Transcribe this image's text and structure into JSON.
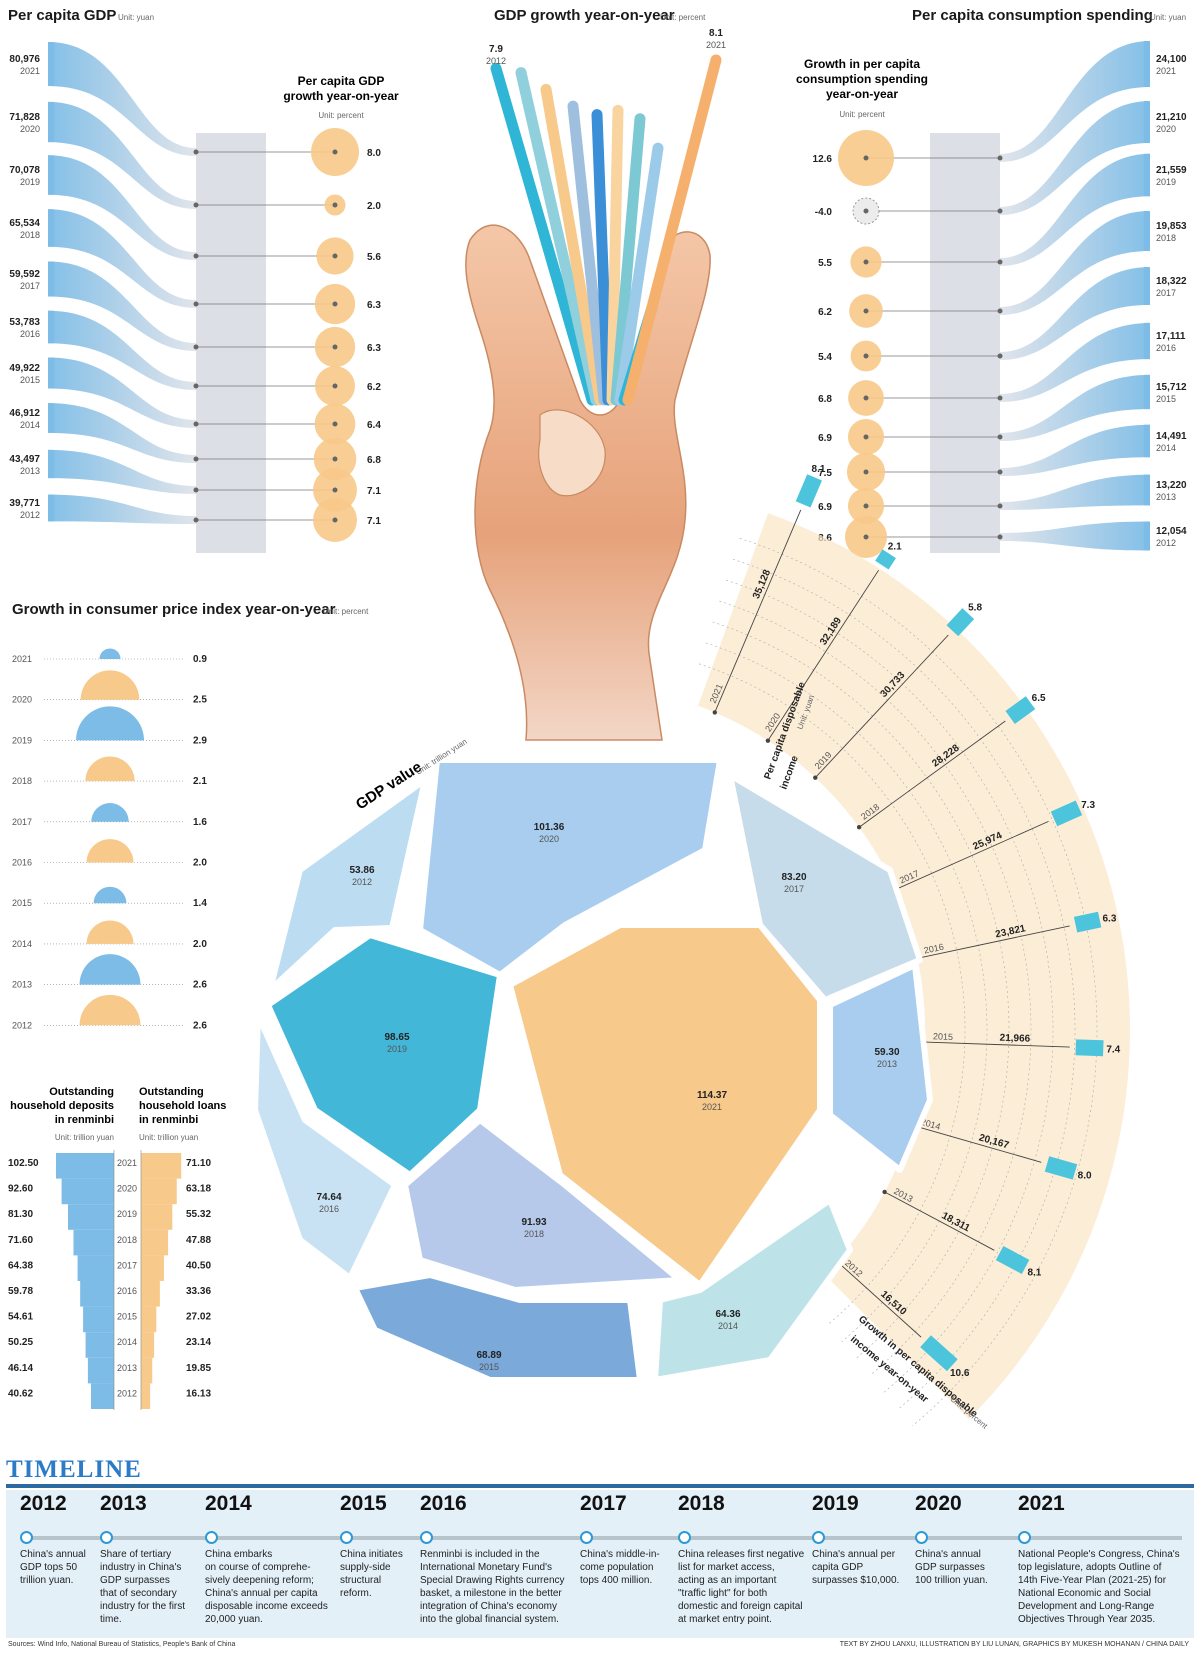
{
  "chart_data": [
    {
      "type": "bar",
      "title": "Per capita GDP",
      "unit": "Unit: yuan",
      "categories": [
        "2021",
        "2020",
        "2019",
        "2018",
        "2017",
        "2016",
        "2015",
        "2014",
        "2013",
        "2012"
      ],
      "values": [
        80976,
        71828,
        70078,
        65534,
        59592,
        53783,
        49922,
        46912,
        43497,
        39771
      ],
      "labels": [
        "80,976",
        "71,828",
        "70,078",
        "65,534",
        "59,592",
        "53,783",
        "49,922",
        "46,912",
        "43,497",
        "39,771"
      ]
    },
    {
      "type": "scatter",
      "title": "Per capita GDP growth year-on-year",
      "unit": "Unit: percent",
      "categories": [
        "2021",
        "2020",
        "2019",
        "2018",
        "2017",
        "2016",
        "2015",
        "2014",
        "2013",
        "2012"
      ],
      "values": [
        8.0,
        2.0,
        5.6,
        6.3,
        6.3,
        6.2,
        6.4,
        6.8,
        7.1,
        7.1
      ],
      "labels": [
        "8.0",
        "2.0",
        "5.6",
        "6.3",
        "6.3",
        "6.2",
        "6.4",
        "6.8",
        "7.1",
        "7.1"
      ]
    },
    {
      "type": "bar",
      "title": "GDP growth year-on-year",
      "unit": "Unit: percent",
      "categories": [
        "2012",
        "2013",
        "2014",
        "2015",
        "2016",
        "2017",
        "2018",
        "2019",
        "2020",
        "2021"
      ],
      "values": [
        7.9,
        7.8,
        7.4,
        7.0,
        6.8,
        6.9,
        6.7,
        6.0,
        2.2,
        8.1
      ],
      "labels": [
        "7.9",
        "",
        "",
        "",
        "",
        "",
        "",
        "",
        "",
        "8.1"
      ],
      "label_years": [
        "2012",
        "",
        "",
        "",
        "",
        "",
        "",
        "",
        "",
        "2021"
      ]
    },
    {
      "type": "bar",
      "title": "Per capita consumption spending",
      "unit": "Unit: yuan",
      "categories": [
        "2021",
        "2020",
        "2019",
        "2018",
        "2017",
        "2016",
        "2015",
        "2014",
        "2013",
        "2012"
      ],
      "values": [
        24100,
        21210,
        21559,
        19853,
        18322,
        17111,
        15712,
        14491,
        13220,
        12054
      ],
      "labels": [
        "24,100",
        "21,210",
        "21,559",
        "19,853",
        "18,322",
        "17,111",
        "15,712",
        "14,491",
        "13,220",
        "12,054"
      ]
    },
    {
      "type": "scatter",
      "title": "Growth in per capita consumption spending year-on-year",
      "unit": "Unit: percent",
      "categories": [
        "2021",
        "2020",
        "2019",
        "2018",
        "2017",
        "2016",
        "2015",
        "2014",
        "2013",
        "2012"
      ],
      "values": [
        12.6,
        -4.0,
        5.5,
        6.2,
        5.4,
        6.8,
        6.9,
        7.5,
        6.9,
        8.6
      ],
      "labels": [
        "12.6",
        "-4.0",
        "5.5",
        "6.2",
        "5.4",
        "6.8",
        "6.9",
        "7.5",
        "6.9",
        "8.6"
      ]
    },
    {
      "type": "bar",
      "title": "Growth in consumer price index year-on-year",
      "unit": "Unit: percent",
      "categories": [
        "2021",
        "2020",
        "2019",
        "2018",
        "2017",
        "2016",
        "2015",
        "2014",
        "2013",
        "2012"
      ],
      "values": [
        0.9,
        2.5,
        2.9,
        2.1,
        1.6,
        2.0,
        1.4,
        2.0,
        2.6,
        2.6
      ],
      "labels": [
        "0.9",
        "2.5",
        "2.9",
        "2.1",
        "1.6",
        "2.0",
        "1.4",
        "2.0",
        "2.6",
        "2.6"
      ]
    },
    {
      "type": "bar",
      "title": "Outstanding household deposits in renminbi",
      "unit": "Unit: trillion yuan",
      "categories": [
        "2021",
        "2020",
        "2019",
        "2018",
        "2017",
        "2016",
        "2015",
        "2014",
        "2013",
        "2012"
      ],
      "values": [
        102.5,
        92.6,
        81.3,
        71.6,
        64.38,
        59.78,
        54.61,
        50.25,
        46.14,
        40.62
      ],
      "labels": [
        "102.50",
        "92.60",
        "81.30",
        "71.60",
        "64.38",
        "59.78",
        "54.61",
        "50.25",
        "46.14",
        "40.62"
      ]
    },
    {
      "type": "bar",
      "title": "Outstanding household loans in renminbi",
      "unit": "Unit: trillion yuan",
      "categories": [
        "2021",
        "2020",
        "2019",
        "2018",
        "2017",
        "2016",
        "2015",
        "2014",
        "2013",
        "2012"
      ],
      "values": [
        71.1,
        63.18,
        55.32,
        47.88,
        40.5,
        33.36,
        27.02,
        23.14,
        19.85,
        16.13
      ],
      "labels": [
        "71.10",
        "63.18",
        "55.32",
        "47.88",
        "40.50",
        "33.36",
        "27.02",
        "23.14",
        "19.85",
        "16.13"
      ]
    },
    {
      "type": "area",
      "title": "GDP value",
      "unit": "Unit: trillion yuan",
      "categories": [
        "2012",
        "2020",
        "2017",
        "2019",
        "2021",
        "2013",
        "2016",
        "2018",
        "2015",
        "2014"
      ],
      "values": [
        53.86,
        101.36,
        83.2,
        98.65,
        114.37,
        59.3,
        74.64,
        91.93,
        68.89,
        64.36
      ],
      "labels": [
        "53.86",
        "101.36",
        "83.20",
        "98.65",
        "114.37",
        "59.30",
        "74.64",
        "91.93",
        "68.89",
        "64.36"
      ]
    },
    {
      "type": "bar",
      "title": "Per capita disposable income",
      "unit": "Unit: yuan",
      "categories": [
        "2021",
        "2020",
        "2019",
        "2018",
        "2017",
        "2016",
        "2015",
        "2014",
        "2013",
        "2012"
      ],
      "values": [
        35128,
        32189,
        30733,
        28228,
        25974,
        23821,
        21966,
        20167,
        18311,
        16510
      ],
      "labels": [
        "35,128",
        "32,189",
        "30,733",
        "28,228",
        "25,974",
        "23,821",
        "21,966",
        "20,167",
        "18,311",
        "16,510"
      ]
    },
    {
      "type": "bar",
      "title": "Growth in per capita disposable income year-on-year",
      "unit": "Unit: percent",
      "categories": [
        "2021",
        "2020",
        "2019",
        "2018",
        "2017",
        "2016",
        "2015",
        "2014",
        "2013",
        "2012"
      ],
      "values": [
        8.1,
        2.1,
        5.8,
        6.5,
        7.3,
        6.3,
        7.4,
        8.0,
        8.1,
        10.6
      ],
      "labels": [
        "8.1",
        "2.1",
        "5.8",
        "6.5",
        "7.3",
        "6.3",
        "7.4",
        "8.0",
        "8.1",
        "10.6"
      ]
    }
  ],
  "timeline": {
    "title": "TIMELINE",
    "entries": [
      {
        "year": "2012",
        "lines": [
          "China's annual",
          "GDP tops 50",
          "trillion yuan."
        ]
      },
      {
        "year": "2013",
        "lines": [
          "Share of tertiary",
          "industry in China's",
          "GDP surpasses",
          "that of secondary",
          "industry for the first",
          "time."
        ]
      },
      {
        "year": "2014",
        "lines": [
          "China embarks",
          "on course of comprehe-",
          "sively deepening reform;",
          "China's annual per capita",
          "disposable income exceeds",
          "20,000 yuan."
        ]
      },
      {
        "year": "2015",
        "lines": [
          "China initiates",
          "supply-side",
          "structural",
          "reform."
        ]
      },
      {
        "year": "2016",
        "lines": [
          "Renminbi is included in the",
          "International Monetary Fund's",
          "Special Drawing Rights currency",
          "basket, a milestone in the better",
          "integration of China's economy",
          "into the global financial system."
        ]
      },
      {
        "year": "2017",
        "lines": [
          "China's middle-in-",
          "come population",
          "tops 400 million."
        ]
      },
      {
        "year": "2018",
        "lines": [
          "China releases first negative",
          "list for market access,",
          "acting as an important",
          "\"traffic light\" for both",
          "domestic and foreign capital",
          "at market entry point."
        ]
      },
      {
        "year": "2019",
        "lines": [
          "China's annual per",
          "capita GDP",
          "surpasses $10,000."
        ]
      },
      {
        "year": "2020",
        "lines": [
          "China's annual",
          "GDP surpasses",
          "100 trillion yuan."
        ]
      },
      {
        "year": "2021",
        "lines": [
          "National People's Congress, China's",
          "top legislature, adopts Outline of",
          "14th Five-Year Plan (2021-25) for",
          "National Economic and Social",
          "Development and Long-Range",
          "Objectives Through Year 2035."
        ]
      }
    ]
  },
  "footer": {
    "sources": "Sources: Wind Info, National Bureau of Statistics, People's Bank of China",
    "credit": "TEXT BY ZHOU LANXU, ILLUSTRATION BY LIU LUNAN, GRAPHICS BY MUKESH MOHANAN / CHINA DAILY"
  },
  "colors": {
    "blue": "#7dbce6",
    "light_blue": "#bcdcf2",
    "orange": "#f7c98a",
    "teal": "#4cc4dc",
    "gray_band": "#dcdfe5",
    "timeline_accent": "#2c7bc7"
  }
}
